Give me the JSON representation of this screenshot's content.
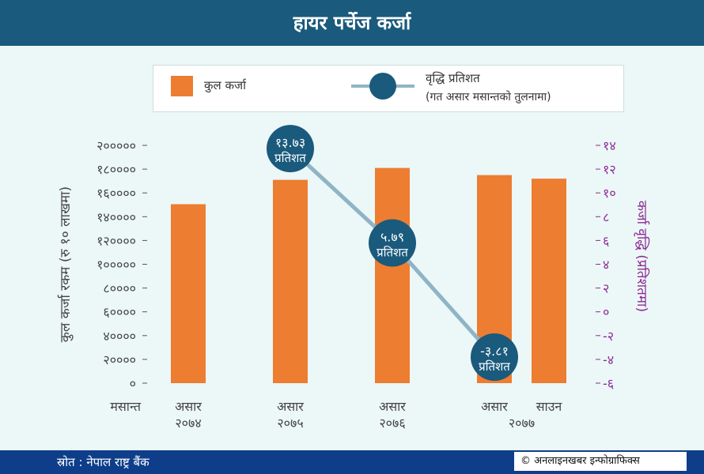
{
  "header": {
    "title": "हायर पर्चेज कर्जा"
  },
  "legend": {
    "bar_label": "कुल कर्जा",
    "line_label": "वृद्धि प्रतिशत",
    "line_sublabel": "(गत असार मसान्तको तुलनामा)"
  },
  "colors": {
    "bar": "#ed7d31",
    "line": "#8fb4c6",
    "marker": "#1a5a7c",
    "right_axis": "#8b2a92",
    "header": "#1a5a7c",
    "footer": "#0e3e8a"
  },
  "chart_data": {
    "type": "bar",
    "xlabel": "मसान्त",
    "ylabel_left": "कुल कर्जा रकम (रु १० लाखमा)",
    "ylabel_right": "कर्जा वृद्धि (प्रतिशतमा)",
    "ylim_left": [
      0,
      200000
    ],
    "ylim_right": [
      -6,
      14
    ],
    "yticks_left": [
      "०",
      "२००००",
      "४००००",
      "६००००",
      "८००००",
      "१०००००",
      "१२००००",
      "१४००००",
      "१६००००",
      "१८००००",
      "२०००००"
    ],
    "yticks_right": [
      "-६",
      "-४",
      "-२",
      "०",
      "२",
      "४",
      "६",
      "८",
      "१०",
      "१२",
      "१४"
    ],
    "category_ticks": [
      {
        "line1": "असार",
        "line2": "२०७४"
      },
      {
        "line1": "असार",
        "line2": "२०७५"
      },
      {
        "line1": "असार",
        "line2": "२०७६"
      },
      {
        "line1": "असार",
        "line2": ""
      },
      {
        "line1": "साउन",
        "line2": ""
      }
    ],
    "group_label": "२०७७",
    "grid": false,
    "legend_position": "top",
    "series": [
      {
        "name": "कुल कर्जा",
        "type": "bar",
        "axis": "left",
        "values": [
          150500,
          171000,
          181000,
          175000,
          172000
        ]
      },
      {
        "name": "वृद्धि प्रतिशत",
        "type": "line",
        "axis": "right",
        "points": [
          {
            "category": 1,
            "value": 13.73,
            "label_value": "१३.७३",
            "label_unit": "प्रतिशत"
          },
          {
            "category": 2,
            "value": 5.79,
            "label_value": "५.७९",
            "label_unit": "प्रतिशत"
          },
          {
            "category": 3,
            "value": -3.81,
            "label_value": "-३.८१",
            "label_unit": "प्रतिशत"
          }
        ]
      }
    ]
  },
  "footer": {
    "source": "स्रोत : नेपाल राष्ट्र बैंक",
    "credit": "© अनलाइनखबर इन्फोग्राफिक्स"
  }
}
